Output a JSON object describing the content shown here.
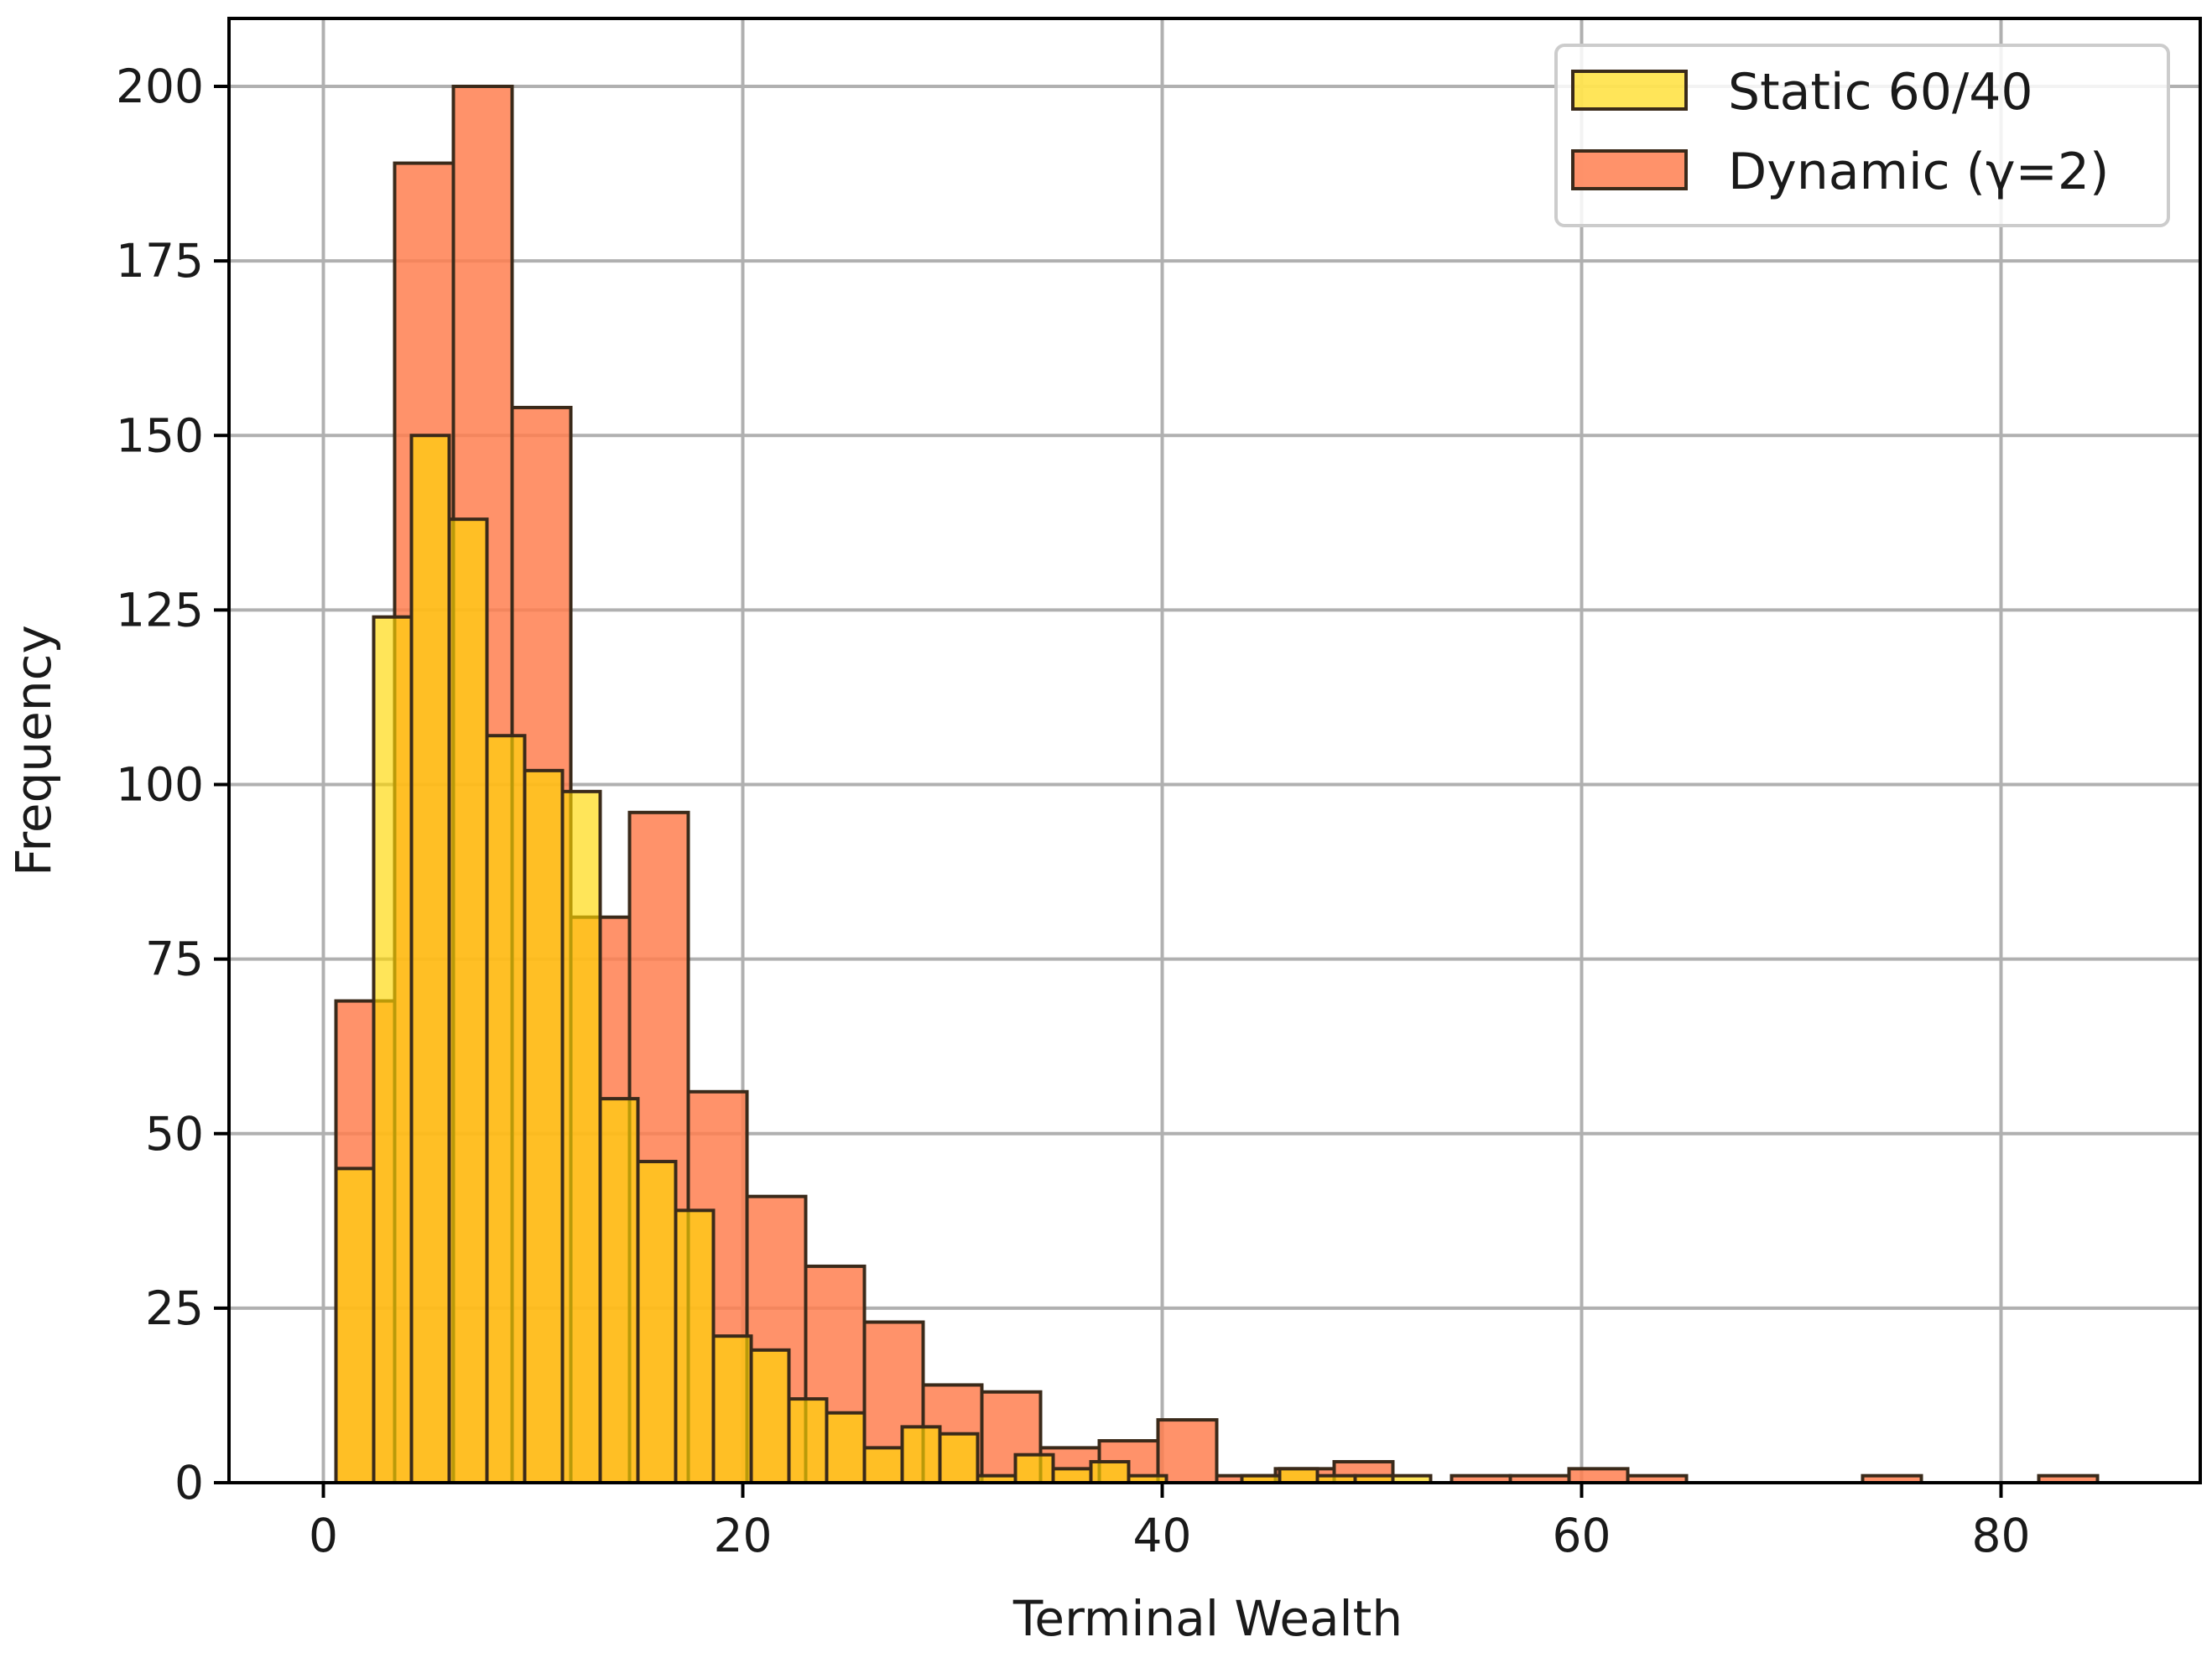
{
  "chart_data": {
    "type": "bar",
    "title": "",
    "xlabel": "Terminal Wealth",
    "ylabel": "Frequency",
    "xlim": [
      -4.5,
      89.5
    ],
    "ylim": [
      0,
      200
    ],
    "xticks": [
      0,
      20,
      40,
      60,
      80
    ],
    "yticks": [
      0,
      25,
      50,
      75,
      100,
      125,
      150,
      175,
      200
    ],
    "grid": true,
    "legend_position": "top-right",
    "series": [
      {
        "name": "Dynamic (γ=2)",
        "color": "#ff7f50",
        "bins": [
          {
            "x0": 0.6,
            "x1": 3.4,
            "value": 69
          },
          {
            "x0": 3.4,
            "x1": 6.2,
            "value": 189
          },
          {
            "x0": 6.2,
            "x1": 9.0,
            "value": 200
          },
          {
            "x0": 9.0,
            "x1": 11.8,
            "value": 154
          },
          {
            "x0": 11.8,
            "x1": 14.6,
            "value": 81
          },
          {
            "x0": 14.6,
            "x1": 17.4,
            "value": 96
          },
          {
            "x0": 17.4,
            "x1": 20.2,
            "value": 56
          },
          {
            "x0": 20.2,
            "x1": 23.0,
            "value": 41
          },
          {
            "x0": 23.0,
            "x1": 25.8,
            "value": 31
          },
          {
            "x0": 25.8,
            "x1": 28.6,
            "value": 23
          },
          {
            "x0": 28.6,
            "x1": 31.4,
            "value": 14
          },
          {
            "x0": 31.4,
            "x1": 34.2,
            "value": 13
          },
          {
            "x0": 34.2,
            "x1": 37.0,
            "value": 5
          },
          {
            "x0": 37.0,
            "x1": 39.8,
            "value": 6
          },
          {
            "x0": 39.8,
            "x1": 42.6,
            "value": 9
          },
          {
            "x0": 42.6,
            "x1": 45.4,
            "value": 1
          },
          {
            "x0": 45.4,
            "x1": 48.2,
            "value": 2
          },
          {
            "x0": 48.2,
            "x1": 51.0,
            "value": 3
          },
          {
            "x0": 51.0,
            "x1": 53.8,
            "value": 0
          },
          {
            "x0": 53.8,
            "x1": 56.6,
            "value": 1
          },
          {
            "x0": 56.6,
            "x1": 59.4,
            "value": 1
          },
          {
            "x0": 59.4,
            "x1": 62.2,
            "value": 2
          },
          {
            "x0": 62.2,
            "x1": 65.0,
            "value": 1
          },
          {
            "x0": 65.0,
            "x1": 67.8,
            "value": 0
          },
          {
            "x0": 67.8,
            "x1": 70.6,
            "value": 0
          },
          {
            "x0": 70.6,
            "x1": 73.4,
            "value": 0
          },
          {
            "x0": 73.4,
            "x1": 76.2,
            "value": 1
          },
          {
            "x0": 76.2,
            "x1": 79.0,
            "value": 0
          },
          {
            "x0": 79.0,
            "x1": 81.8,
            "value": 0
          },
          {
            "x0": 81.8,
            "x1": 84.6,
            "value": 1
          }
        ]
      },
      {
        "name": "Static 60/40",
        "color": "#ffd700",
        "bins": [
          {
            "x0": 0.6,
            "x1": 2.4,
            "value": 45
          },
          {
            "x0": 2.4,
            "x1": 4.2,
            "value": 124
          },
          {
            "x0": 4.2,
            "x1": 6.0,
            "value": 150
          },
          {
            "x0": 6.0,
            "x1": 7.8,
            "value": 138
          },
          {
            "x0": 7.8,
            "x1": 9.6,
            "value": 107
          },
          {
            "x0": 9.6,
            "x1": 11.4,
            "value": 102
          },
          {
            "x0": 11.4,
            "x1": 13.2,
            "value": 99
          },
          {
            "x0": 13.2,
            "x1": 15.0,
            "value": 55
          },
          {
            "x0": 15.0,
            "x1": 16.8,
            "value": 46
          },
          {
            "x0": 16.8,
            "x1": 18.6,
            "value": 39
          },
          {
            "x0": 18.6,
            "x1": 20.4,
            "value": 21
          },
          {
            "x0": 20.4,
            "x1": 22.2,
            "value": 19
          },
          {
            "x0": 22.2,
            "x1": 24.0,
            "value": 12
          },
          {
            "x0": 24.0,
            "x1": 25.8,
            "value": 10
          },
          {
            "x0": 25.8,
            "x1": 27.6,
            "value": 5
          },
          {
            "x0": 27.6,
            "x1": 29.4,
            "value": 8
          },
          {
            "x0": 29.4,
            "x1": 31.2,
            "value": 7
          },
          {
            "x0": 31.2,
            "x1": 33.0,
            "value": 1
          },
          {
            "x0": 33.0,
            "x1": 34.8,
            "value": 4
          },
          {
            "x0": 34.8,
            "x1": 36.6,
            "value": 2
          },
          {
            "x0": 36.6,
            "x1": 38.4,
            "value": 3
          },
          {
            "x0": 38.4,
            "x1": 40.2,
            "value": 1
          },
          {
            "x0": 40.2,
            "x1": 42.0,
            "value": 0
          },
          {
            "x0": 42.0,
            "x1": 43.8,
            "value": 0
          },
          {
            "x0": 43.8,
            "x1": 45.6,
            "value": 1
          },
          {
            "x0": 45.6,
            "x1": 47.4,
            "value": 2
          },
          {
            "x0": 47.4,
            "x1": 49.2,
            "value": 1
          },
          {
            "x0": 49.2,
            "x1": 51.0,
            "value": 1
          },
          {
            "x0": 51.0,
            "x1": 52.8,
            "value": 1
          }
        ]
      }
    ],
    "legend": [
      {
        "label": "Static 60/40",
        "color": "#ffd700"
      },
      {
        "label": "Dynamic (γ=2)",
        "color": "#ff7f50"
      }
    ]
  }
}
